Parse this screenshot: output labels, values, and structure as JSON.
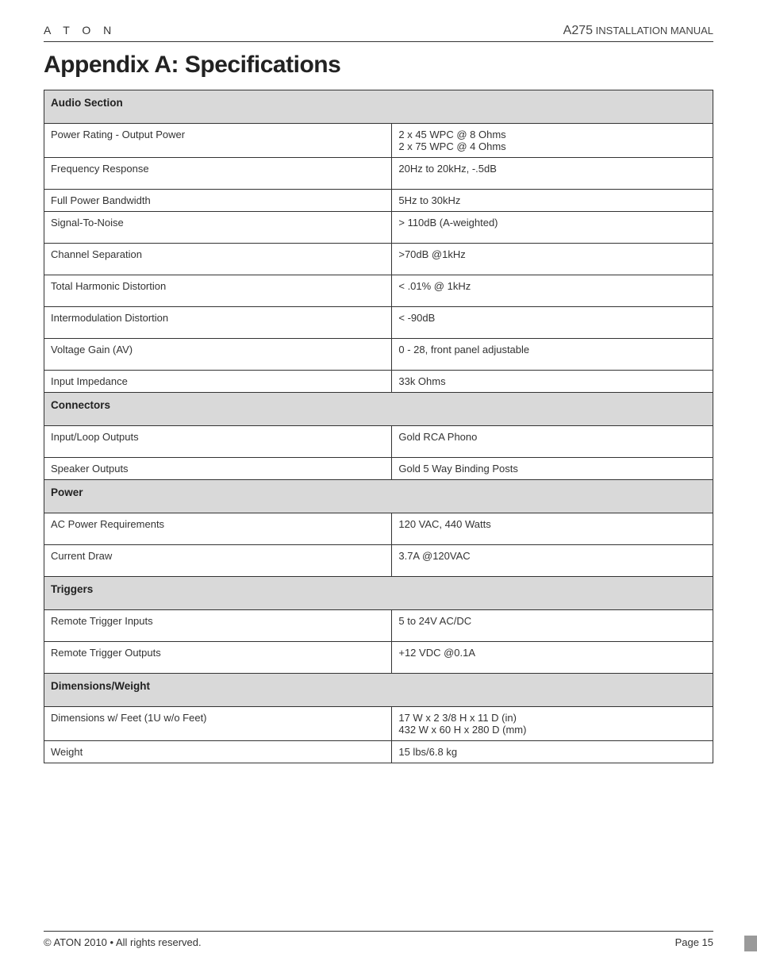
{
  "header": {
    "brand": "A T O N",
    "model": "A275",
    "doc_type": "INSTALLATION MANUAL"
  },
  "title": "Appendix A: Specifications",
  "sections": [
    {
      "title": "Audio Section",
      "rows": [
        {
          "label": "Power Rating - Output Power",
          "value": "2 x 45 WPC @ 8 Ohms\n2 x 75 WPC @ 4 Ohms"
        },
        {
          "label": "Frequency Response",
          "value": "20Hz to 20kHz, -.5dB"
        },
        {
          "label": "Full Power Bandwidth",
          "value": "5Hz to 30kHz",
          "tight": true
        },
        {
          "label": "Signal-To-Noise",
          "value": "> 110dB (A-weighted)"
        },
        {
          "label": "Channel Separation",
          "value": ">70dB @1kHz"
        },
        {
          "label": "Total Harmonic Distortion",
          "value": "< .01% @ 1kHz"
        },
        {
          "label": "Intermodulation Distortion",
          "value": "< -90dB"
        },
        {
          "label": "Voltage Gain (AV)",
          "value": "0 - 28, front panel adjustable"
        },
        {
          "label": "Input Impedance",
          "value": "33k Ohms",
          "tight": true
        }
      ]
    },
    {
      "title": "Connectors",
      "rows": [
        {
          "label": "Input/Loop Outputs",
          "value": "Gold RCA Phono"
        },
        {
          "label": "Speaker Outputs",
          "value": "Gold 5 Way Binding Posts",
          "tight": true
        }
      ]
    },
    {
      "title": "Power",
      "rows": [
        {
          "label": "AC Power Requirements",
          "value": "120 VAC, 440 Watts"
        },
        {
          "label": "Current Draw",
          "value": "3.7A @120VAC"
        }
      ]
    },
    {
      "title": "Triggers",
      "rows": [
        {
          "label": "Remote Trigger Inputs",
          "value": "5 to 24V AC/DC"
        },
        {
          "label": "Remote Trigger Outputs",
          "value": "+12 VDC @0.1A"
        }
      ]
    },
    {
      "title": "Dimensions/Weight",
      "rows": [
        {
          "label": "Dimensions w/ Feet (1U w/o Feet)",
          "value": "17 W x 2 3/8 H x 11 D (in)\n432 W x 60 H x 280 D (mm)",
          "tight": true
        },
        {
          "label": "Weight",
          "value": "15 lbs/6.8 kg",
          "tight": true
        }
      ]
    }
  ],
  "footer": {
    "copyright": "© ATON  2010 • All rights reserved.",
    "page": "Page 15"
  },
  "styling": {
    "page_bg": "#ffffff",
    "text_color": "#333333",
    "section_bg": "#d9d9d9",
    "border_color": "#333333",
    "title_fontsize": 30,
    "body_fontsize": 13,
    "label_col_width_pct": 52,
    "value_col_width_pct": 48
  }
}
